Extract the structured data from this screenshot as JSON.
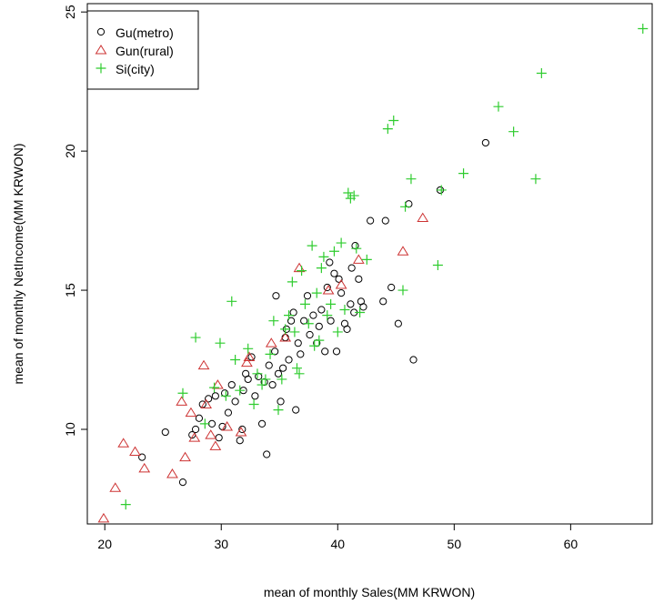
{
  "chart_data": {
    "type": "scatter",
    "title": "",
    "xlabel": "mean of monthly Sales(MM KRWON)",
    "ylabel": "mean of monthly NetIncome(MM KRWON)",
    "xlim": [
      18.5,
      67
    ],
    "ylim": [
      6.6,
      25.3
    ],
    "x_ticks": [
      20,
      30,
      40,
      50,
      60
    ],
    "y_ticks": [
      10,
      15,
      20,
      25
    ],
    "legend_position": "top-left",
    "grid": false,
    "series": [
      {
        "name": "Gu(metro)",
        "marker": "circle",
        "color": "#000000",
        "points": [
          [
            23.2,
            9.0
          ],
          [
            25.2,
            9.9
          ],
          [
            26.7,
            8.1
          ],
          [
            27.5,
            9.8
          ],
          [
            27.8,
            10.0
          ],
          [
            28.1,
            10.4
          ],
          [
            28.4,
            10.9
          ],
          [
            28.9,
            11.1
          ],
          [
            29.2,
            10.2
          ],
          [
            29.5,
            11.2
          ],
          [
            29.8,
            9.7
          ],
          [
            30.1,
            10.1
          ],
          [
            30.3,
            11.3
          ],
          [
            30.6,
            10.6
          ],
          [
            30.9,
            11.6
          ],
          [
            31.2,
            11.0
          ],
          [
            31.6,
            9.6
          ],
          [
            31.8,
            10.0
          ],
          [
            31.9,
            11.4
          ],
          [
            32.1,
            12.0
          ],
          [
            32.3,
            11.8
          ],
          [
            32.6,
            12.6
          ],
          [
            32.9,
            11.2
          ],
          [
            33.2,
            11.9
          ],
          [
            33.5,
            10.2
          ],
          [
            33.7,
            11.7
          ],
          [
            33.9,
            9.1
          ],
          [
            34.1,
            12.3
          ],
          [
            34.4,
            11.6
          ],
          [
            34.6,
            12.8
          ],
          [
            34.7,
            14.8
          ],
          [
            34.9,
            12.0
          ],
          [
            35.1,
            11.0
          ],
          [
            35.3,
            12.2
          ],
          [
            35.5,
            13.3
          ],
          [
            35.6,
            13.6
          ],
          [
            35.8,
            12.5
          ],
          [
            36.0,
            13.9
          ],
          [
            36.2,
            14.2
          ],
          [
            36.4,
            10.7
          ],
          [
            36.6,
            13.1
          ],
          [
            36.8,
            12.7
          ],
          [
            37.1,
            13.9
          ],
          [
            37.4,
            14.8
          ],
          [
            37.6,
            13.4
          ],
          [
            37.9,
            14.1
          ],
          [
            38.2,
            13.1
          ],
          [
            38.4,
            13.7
          ],
          [
            38.6,
            14.3
          ],
          [
            38.9,
            12.8
          ],
          [
            39.1,
            15.1
          ],
          [
            39.3,
            16.0
          ],
          [
            39.4,
            13.9
          ],
          [
            39.7,
            15.6
          ],
          [
            39.9,
            12.8
          ],
          [
            40.1,
            15.4
          ],
          [
            40.3,
            14.9
          ],
          [
            40.6,
            13.8
          ],
          [
            40.8,
            13.6
          ],
          [
            41.1,
            14.5
          ],
          [
            41.2,
            15.8
          ],
          [
            41.4,
            14.2
          ],
          [
            41.5,
            16.6
          ],
          [
            41.8,
            15.4
          ],
          [
            42.0,
            14.6
          ],
          [
            42.2,
            14.4
          ],
          [
            42.8,
            17.5
          ],
          [
            43.9,
            14.6
          ],
          [
            44.1,
            17.5
          ],
          [
            44.6,
            15.1
          ],
          [
            45.2,
            13.8
          ],
          [
            46.1,
            18.1
          ],
          [
            46.5,
            12.5
          ],
          [
            48.8,
            18.6
          ],
          [
            52.7,
            20.3
          ]
        ]
      },
      {
        "name": "Gun(rural)",
        "marker": "triangle",
        "color": "#cd3333",
        "points": [
          [
            19.9,
            6.8
          ],
          [
            20.9,
            7.9
          ],
          [
            21.6,
            9.5
          ],
          [
            22.6,
            9.2
          ],
          [
            23.4,
            8.6
          ],
          [
            25.8,
            8.4
          ],
          [
            26.6,
            11.0
          ],
          [
            26.9,
            9.0
          ],
          [
            27.4,
            10.6
          ],
          [
            27.7,
            9.7
          ],
          [
            28.5,
            12.3
          ],
          [
            28.7,
            10.9
          ],
          [
            29.1,
            9.8
          ],
          [
            29.5,
            9.4
          ],
          [
            29.7,
            11.6
          ],
          [
            30.5,
            10.1
          ],
          [
            31.7,
            9.9
          ],
          [
            32.2,
            12.4
          ],
          [
            32.4,
            12.6
          ],
          [
            34.3,
            13.1
          ],
          [
            35.5,
            13.3
          ],
          [
            36.7,
            15.8
          ],
          [
            39.2,
            15.0
          ],
          [
            40.3,
            15.2
          ],
          [
            41.8,
            16.1
          ],
          [
            45.6,
            16.4
          ],
          [
            47.3,
            17.6
          ]
        ]
      },
      {
        "name": "Si(city)",
        "marker": "plus",
        "color": "#2ecc2e",
        "points": [
          [
            21.8,
            7.3
          ],
          [
            26.7,
            11.3
          ],
          [
            27.8,
            13.3
          ],
          [
            28.6,
            10.2
          ],
          [
            29.4,
            11.5
          ],
          [
            29.9,
            13.1
          ],
          [
            30.4,
            11.2
          ],
          [
            30.9,
            14.6
          ],
          [
            31.2,
            12.5
          ],
          [
            31.6,
            11.4
          ],
          [
            32.3,
            12.9
          ],
          [
            32.8,
            10.9
          ],
          [
            33.1,
            12.0
          ],
          [
            33.5,
            11.6
          ],
          [
            33.8,
            11.8
          ],
          [
            34.2,
            12.7
          ],
          [
            34.5,
            13.9
          ],
          [
            34.9,
            10.7
          ],
          [
            35.2,
            11.8
          ],
          [
            35.5,
            13.6
          ],
          [
            35.8,
            14.1
          ],
          [
            36.1,
            15.3
          ],
          [
            36.3,
            13.5
          ],
          [
            36.5,
            12.2
          ],
          [
            36.7,
            12.0
          ],
          [
            36.9,
            15.7
          ],
          [
            37.2,
            14.5
          ],
          [
            37.5,
            13.8
          ],
          [
            37.8,
            16.6
          ],
          [
            38.0,
            13.0
          ],
          [
            38.2,
            14.9
          ],
          [
            38.4,
            13.2
          ],
          [
            38.6,
            15.8
          ],
          [
            38.8,
            16.2
          ],
          [
            39.1,
            14.1
          ],
          [
            39.4,
            14.5
          ],
          [
            39.7,
            16.4
          ],
          [
            40.0,
            13.5
          ],
          [
            40.3,
            16.7
          ],
          [
            40.6,
            14.3
          ],
          [
            40.9,
            18.5
          ],
          [
            41.1,
            18.3
          ],
          [
            41.4,
            18.4
          ],
          [
            41.6,
            16.5
          ],
          [
            41.9,
            14.2
          ],
          [
            42.5,
            16.1
          ],
          [
            44.3,
            20.8
          ],
          [
            44.8,
            21.1
          ],
          [
            45.6,
            15.0
          ],
          [
            45.8,
            18.0
          ],
          [
            46.3,
            19.0
          ],
          [
            48.6,
            15.9
          ],
          [
            48.9,
            18.6
          ],
          [
            50.8,
            19.2
          ],
          [
            53.8,
            21.6
          ],
          [
            55.1,
            20.7
          ],
          [
            57.0,
            19.0
          ],
          [
            57.5,
            22.8
          ],
          [
            66.2,
            24.4
          ]
        ]
      }
    ]
  }
}
